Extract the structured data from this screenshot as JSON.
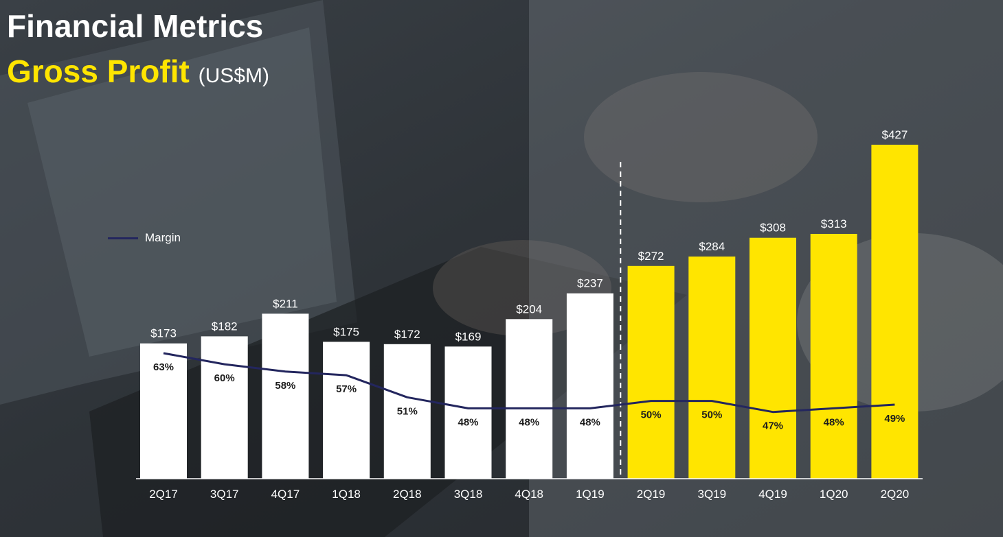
{
  "header": {
    "title": "Financial Metrics",
    "subtitle": "Gross Profit",
    "unit": "(US$M)"
  },
  "legend": {
    "label": "Margin",
    "color": "#23265e"
  },
  "colors": {
    "historical_bar": "#ffffff",
    "recent_bar": "#ffe500",
    "margin_line": "#23265e"
  },
  "chart_data": {
    "type": "bar",
    "title": "Gross Profit",
    "unit": "(US$M)",
    "categories": [
      "2Q17",
      "3Q17",
      "4Q17",
      "1Q18",
      "2Q18",
      "3Q18",
      "4Q18",
      "1Q19",
      "2Q19",
      "3Q19",
      "4Q19",
      "1Q20",
      "2Q20"
    ],
    "series": [
      {
        "type": "bar",
        "values": [
          173,
          182,
          211,
          175,
          172,
          169,
          204,
          237,
          272,
          284,
          308,
          313,
          427
        ],
        "labels": [
          "$173",
          "$182",
          "$211",
          "$175",
          "$172",
          "$169",
          "$204",
          "$237",
          "$272",
          "$284",
          "$308",
          "$313",
          "$427"
        ]
      },
      {
        "name": "Margin",
        "type": "line",
        "values": [
          63,
          60,
          58,
          57,
          51,
          48,
          48,
          48,
          50,
          50,
          47,
          48,
          49
        ],
        "labels": [
          "63%",
          "60%",
          "58%",
          "57%",
          "51%",
          "48%",
          "48%",
          "48%",
          "50%",
          "50%",
          "47%",
          "48%",
          "49%"
        ]
      }
    ],
    "highlight_from_index": 8,
    "divider_after": "1Q19",
    "legend_position": "left",
    "grid": false,
    "ylim": [
      0,
      427
    ]
  }
}
